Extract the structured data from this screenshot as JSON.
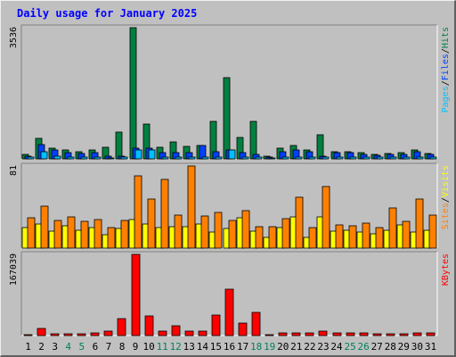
{
  "chart_data": {
    "type": "bar",
    "title": "Daily usage for January 2025",
    "categories": [
      "1",
      "2",
      "3",
      "4",
      "5",
      "6",
      "7",
      "8",
      "9",
      "10",
      "11",
      "12",
      "13",
      "14",
      "15",
      "16",
      "17",
      "18",
      "19",
      "20",
      "21",
      "22",
      "23",
      "24",
      "25",
      "26",
      "27",
      "28",
      "29",
      "30",
      "31"
    ],
    "weekend_days": [
      "4",
      "5",
      "11",
      "12",
      "18",
      "19",
      "25",
      "26"
    ],
    "panels": [
      {
        "name": "hits-panel",
        "max_label": "3536",
        "ylim": [
          0,
          3536
        ],
        "legend": [
          {
            "text": "Hits",
            "color": "#008040"
          },
          {
            "text": "/",
            "color": "#000000"
          },
          {
            "text": "Files",
            "color": "#0040ff"
          },
          {
            "text": "/",
            "color": "#000000"
          },
          {
            "text": "Pages",
            "color": "#00c0ff"
          }
        ],
        "series": [
          {
            "name": "Hits",
            "color": "#008040",
            "values": [
              130,
              560,
              300,
              230,
              200,
              250,
              320,
              720,
              3536,
              950,
              320,
              460,
              330,
              350,
              1000,
              2200,
              570,
              1020,
              80,
              280,
              350,
              250,
              650,
              200,
              200,
              170,
              130,
              150,
              170,
              240,
              150
            ]
          },
          {
            "name": "Files",
            "color": "#0040ff",
            "values": [
              80,
              380,
              250,
              170,
              150,
              180,
              70,
              80,
              300,
              290,
              170,
              170,
              170,
              360,
              190,
              230,
              180,
              130,
              40,
              200,
              250,
              200,
              80,
              170,
              170,
              130,
              100,
              110,
              120,
              200,
              110
            ]
          },
          {
            "name": "Pages",
            "color": "#00c0ff",
            "values": [
              60,
              200,
              80,
              60,
              60,
              60,
              30,
              40,
              250,
              250,
              60,
              60,
              60,
              60,
              60,
              250,
              60,
              60,
              20,
              60,
              60,
              60,
              40,
              60,
              60,
              60,
              50,
              50,
              50,
              60,
              50
            ]
          }
        ]
      },
      {
        "name": "visits-panel",
        "max_label": "81",
        "ylim": [
          0,
          81
        ],
        "legend": [
          {
            "text": "Visits",
            "color": "#ffff00"
          },
          {
            "text": "/",
            "color": "#000000"
          },
          {
            "text": "Sites",
            "color": "#ff8000"
          }
        ],
        "series": [
          {
            "name": "Visits",
            "color": "#ffff00",
            "values": [
              20,
              24,
              17,
              22,
              18,
              20,
              13,
              19,
              28,
              24,
              20,
              21,
              21,
              24,
              16,
              19,
              30,
              17,
              11,
              20,
              31,
              11,
              31,
              17,
              18,
              16,
              14,
              18,
              23,
              16,
              18
            ]
          },
          {
            "name": "Sites",
            "color": "#ff8000",
            "values": [
              30,
              41,
              27,
              31,
              26,
              28,
              20,
              27,
              71,
              48,
              68,
              33,
              81,
              32,
              35,
              27,
              37,
              21,
              21,
              29,
              50,
              20,
              61,
              23,
              22,
              25,
              20,
              40,
              26,
              48,
              33
            ]
          }
        ]
      },
      {
        "name": "kbytes-panel",
        "max_label": "167039",
        "ylim": [
          0,
          167039
        ],
        "legend": [
          {
            "text": "KBytes",
            "color": "#ff0000"
          }
        ],
        "series": [
          {
            "name": "KBytes",
            "color": "#ff0000",
            "values": [
              2000,
              14000,
              4000,
              4000,
              4000,
              5000,
              9000,
              34000,
              167039,
              40000,
              9000,
              20000,
              9000,
              10000,
              43000,
              95000,
              26000,
              47000,
              1000,
              6000,
              6000,
              6000,
              9000,
              6000,
              5000,
              5000,
              3000,
              4000,
              4000,
              6000,
              5000
            ]
          }
        ]
      }
    ]
  },
  "colors": {
    "background": "#c0c0c0",
    "title": "#0000ff",
    "weekday_label": "#000000",
    "weekend_label": "#00805c"
  }
}
